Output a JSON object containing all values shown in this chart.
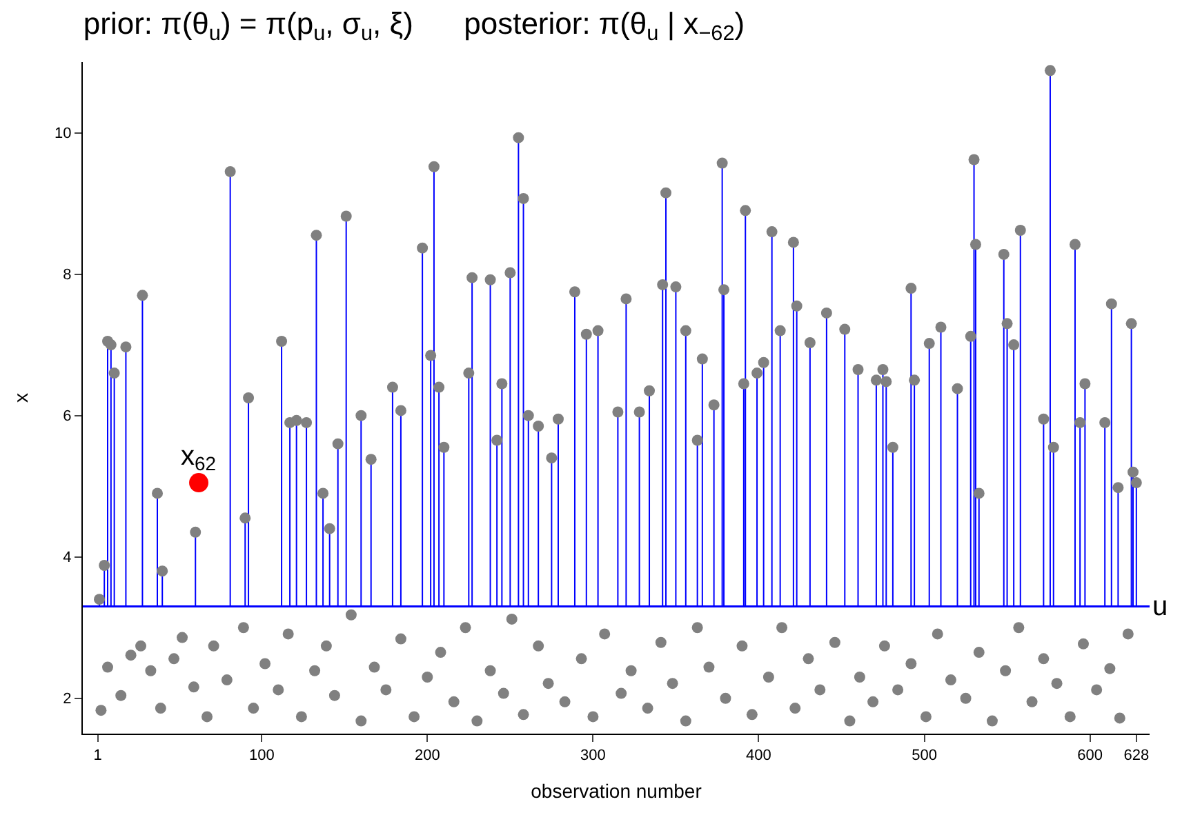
{
  "chart_data": {
    "type": "scatter",
    "title": "prior: π(θ$_{u}$) = π(p$_{u}$, σ$_{u}$, ξ)      posterior: π(θ$_{u}$ | x$_{−62}$)",
    "xlabel": "observation number",
    "ylabel": "x",
    "xlim": [
      -8,
      636
    ],
    "xticks": [
      1,
      100,
      200,
      300,
      400,
      500,
      600,
      628
    ],
    "ylim": [
      1.5,
      11
    ],
    "yticks": [
      2,
      4,
      6,
      8,
      10
    ],
    "marker": "circle",
    "ref_lines": [
      {
        "axis": "y",
        "value": 3.3,
        "label": "u",
        "color": "#0000ff"
      }
    ],
    "annotations": [
      {
        "text": "x$_{62}$",
        "x": 62,
        "y": 5.05
      }
    ],
    "series": [
      {
        "errors": [
          [
            3.3,
            3.4
          ],
          [
            3.3,
            3.88
          ],
          [
            3.3,
            7.05
          ],
          [
            3.3,
            7.0
          ],
          [
            3.3,
            6.6
          ],
          [
            3.3,
            6.97
          ],
          [
            3.3,
            7.7
          ],
          [
            3.3,
            4.9
          ],
          [
            3.3,
            3.8
          ],
          [
            3.3,
            4.35
          ],
          [
            3.3,
            9.45
          ],
          [
            3.3,
            4.55
          ],
          [
            3.3,
            6.25
          ],
          [
            3.3,
            7.05
          ],
          [
            3.3,
            5.9
          ],
          [
            3.3,
            5.93
          ],
          [
            3.3,
            5.9
          ],
          [
            3.3,
            8.55
          ],
          [
            3.3,
            4.9
          ],
          [
            3.3,
            4.4
          ],
          [
            3.3,
            5.6
          ],
          [
            3.3,
            8.82
          ],
          [
            3.3,
            6.0
          ],
          [
            3.3,
            5.38
          ],
          [
            3.3,
            6.4
          ],
          [
            3.3,
            6.07
          ],
          [
            3.3,
            8.37
          ],
          [
            3.3,
            6.85
          ],
          [
            3.3,
            9.52
          ],
          [
            3.3,
            6.4
          ],
          [
            3.3,
            5.55
          ],
          [
            3.3,
            6.6
          ],
          [
            3.3,
            7.95
          ],
          [
            3.3,
            7.92
          ],
          [
            3.3,
            5.65
          ],
          [
            3.3,
            6.45
          ],
          [
            3.3,
            8.02
          ],
          [
            3.3,
            9.93
          ],
          [
            3.3,
            9.07
          ],
          [
            3.3,
            6.0
          ],
          [
            3.3,
            5.85
          ],
          [
            3.3,
            5.4
          ],
          [
            3.3,
            5.95
          ],
          [
            3.3,
            7.75
          ],
          [
            3.3,
            7.15
          ],
          [
            3.3,
            7.2
          ],
          [
            3.3,
            6.05
          ],
          [
            3.3,
            7.65
          ],
          [
            3.3,
            6.05
          ],
          [
            3.3,
            6.35
          ],
          [
            3.3,
            7.85
          ],
          [
            3.3,
            9.15
          ],
          [
            3.3,
            7.82
          ],
          [
            3.3,
            7.2
          ],
          [
            3.3,
            5.65
          ],
          [
            3.3,
            6.8
          ],
          [
            3.3,
            6.15
          ],
          [
            3.3,
            9.57
          ],
          [
            3.3,
            7.78
          ],
          [
            3.3,
            6.45
          ],
          [
            3.3,
            8.9
          ],
          [
            3.3,
            6.6
          ],
          [
            3.3,
            6.75
          ],
          [
            3.3,
            8.6
          ],
          [
            3.3,
            7.2
          ],
          [
            3.3,
            8.45
          ],
          [
            3.3,
            7.55
          ],
          [
            3.3,
            7.03
          ],
          [
            3.3,
            7.45
          ],
          [
            3.3,
            7.22
          ],
          [
            3.3,
            6.65
          ],
          [
            3.3,
            6.5
          ],
          [
            3.3,
            6.65
          ],
          [
            3.3,
            6.48
          ],
          [
            3.3,
            5.55
          ],
          [
            3.3,
            7.8
          ],
          [
            3.3,
            6.5
          ],
          [
            3.3,
            7.02
          ],
          [
            3.3,
            7.25
          ],
          [
            3.3,
            6.38
          ],
          [
            3.3,
            7.12
          ],
          [
            3.3,
            9.62
          ],
          [
            3.3,
            8.42
          ],
          [
            3.3,
            4.9
          ],
          [
            3.3,
            8.28
          ],
          [
            3.3,
            7.3
          ],
          [
            3.3,
            7.0
          ],
          [
            3.3,
            8.62
          ],
          [
            3.3,
            5.95
          ],
          [
            3.3,
            10.88
          ],
          [
            3.3,
            5.55
          ],
          [
            3.3,
            8.42
          ],
          [
            3.3,
            5.9
          ],
          [
            3.3,
            6.45
          ],
          [
            3.3,
            5.9
          ],
          [
            3.3,
            7.58
          ],
          [
            3.3,
            4.98
          ],
          [
            3.3,
            7.3
          ],
          [
            3.3,
            5.2
          ],
          [
            3.3,
            5.05
          ]
        ],
        "color": "#808080",
        "x": [
          2,
          5,
          7,
          9,
          11,
          18,
          28,
          37,
          40,
          60,
          81,
          90,
          92,
          112,
          117,
          121,
          127,
          133,
          137,
          141,
          146,
          151,
          160,
          166,
          179,
          184,
          197,
          202,
          204,
          207,
          210,
          225,
          227,
          238,
          242,
          245,
          250,
          255,
          258,
          261,
          267,
          275,
          279,
          289,
          296,
          303,
          315,
          320,
          328,
          334,
          342,
          344,
          350,
          356,
          363,
          366,
          373,
          378,
          379,
          391,
          392,
          399,
          403,
          408,
          413,
          421,
          423,
          431,
          441,
          452,
          460,
          471,
          475,
          477,
          481,
          492,
          494,
          503,
          510,
          520,
          528,
          530,
          531,
          533,
          548,
          550,
          554,
          558,
          572,
          576,
          578,
          591,
          594,
          597,
          609,
          613,
          617,
          625,
          626,
          628
        ],
        "values": [
          3.4,
          3.88,
          7.05,
          7.0,
          6.6,
          6.97,
          7.7,
          4.9,
          3.8,
          4.35,
          9.45,
          4.55,
          6.25,
          7.05,
          5.9,
          5.93,
          5.9,
          8.55,
          4.9,
          4.4,
          5.6,
          8.82,
          6.0,
          5.38,
          6.4,
          6.07,
          8.37,
          6.85,
          9.52,
          6.4,
          5.55,
          6.6,
          7.95,
          7.92,
          5.65,
          6.45,
          8.02,
          9.93,
          9.07,
          6.0,
          5.85,
          5.4,
          5.95,
          7.75,
          7.15,
          7.2,
          6.05,
          7.65,
          6.05,
          6.35,
          7.85,
          9.15,
          7.82,
          7.2,
          5.65,
          6.8,
          6.15,
          9.57,
          7.78,
          6.45,
          8.9,
          6.6,
          6.75,
          8.6,
          7.2,
          8.45,
          7.55,
          7.03,
          7.45,
          7.22,
          6.65,
          6.5,
          6.65,
          6.48,
          5.55,
          7.8,
          6.5,
          7.02,
          7.25,
          6.38,
          7.12,
          9.62,
          8.42,
          4.9,
          8.28,
          7.3,
          7.0,
          8.62,
          5.95,
          10.88,
          5.55,
          8.42,
          5.9,
          6.45,
          5.9,
          7.58,
          4.98,
          7.3,
          5.2,
          5.05
        ]
      },
      {
        "type": "scatter",
        "color": "#808080",
        "x": [
          3,
          7,
          15,
          21,
          27,
          33,
          39,
          47,
          52,
          59,
          67,
          71,
          79,
          89,
          95,
          102,
          110,
          116,
          124,
          132,
          139,
          144,
          154,
          160,
          168,
          175,
          184,
          192,
          200,
          208,
          216,
          223,
          230,
          238,
          246,
          251,
          258,
          267,
          273,
          283,
          293,
          300,
          307,
          317,
          323,
          333,
          341,
          348,
          356,
          363,
          370,
          380,
          390,
          396,
          406,
          414,
          422,
          430,
          437,
          446,
          455,
          461,
          469,
          476,
          484,
          492,
          501,
          508,
          516,
          525,
          533,
          541,
          549,
          557,
          565,
          572,
          580,
          588,
          596,
          604,
          612,
          618,
          623
        ],
        "values": [
          1.83,
          2.44,
          2.04,
          2.61,
          2.74,
          2.39,
          1.86,
          2.56,
          2.86,
          2.16,
          1.74,
          2.74,
          2.26,
          3.0,
          1.86,
          2.49,
          2.12,
          2.91,
          1.74,
          2.39,
          2.74,
          2.04,
          3.18,
          1.68,
          2.44,
          2.12,
          2.84,
          1.74,
          2.3,
          2.65,
          1.95,
          3.0,
          1.68,
          2.39,
          2.07,
          3.12,
          1.77,
          2.74,
          2.21,
          1.95,
          2.56,
          1.74,
          2.91,
          2.07,
          2.39,
          1.86,
          2.79,
          2.21,
          1.68,
          3.0,
          2.44,
          2.0,
          2.74,
          1.77,
          2.3,
          3.0,
          1.86,
          2.56,
          2.12,
          2.79,
          1.68,
          2.3,
          1.95,
          2.74,
          2.12,
          2.49,
          1.74,
          2.91,
          2.26,
          2.0,
          2.65,
          1.68,
          2.39,
          3.0,
          1.95,
          2.56,
          2.21,
          1.74,
          2.77,
          2.12,
          2.42,
          1.72,
          2.91
        ]
      },
      {
        "type": "scatter",
        "color": "#ff0000",
        "x": [
          62
        ],
        "values": [
          5.05
        ]
      }
    ]
  }
}
